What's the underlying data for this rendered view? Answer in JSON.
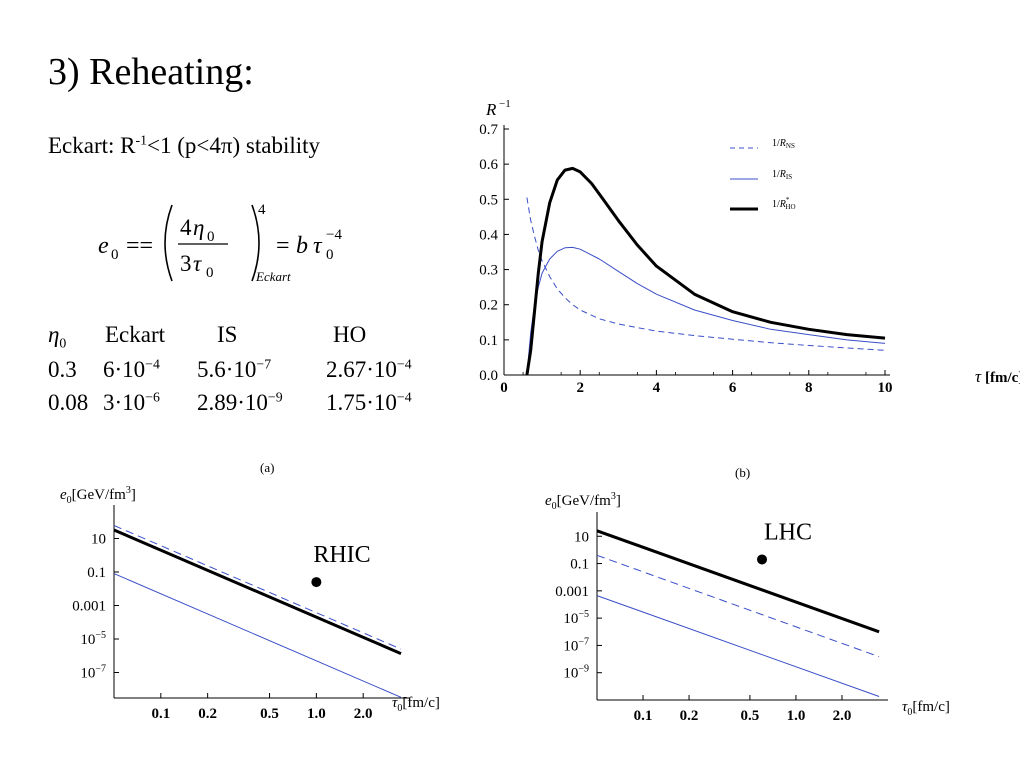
{
  "slide": {
    "title": "3) Reheating:",
    "eckart_line": {
      "prefix": "Eckart: R",
      "exp": "-1",
      "mid": "<1 (p<4",
      "pi": "π",
      "suffix": ") stability"
    },
    "formula": {
      "lhs_e": "e",
      "lhs_sub": "0",
      "equals": "==",
      "num_4": "4",
      "num_eta": "η",
      "num_sub": "0",
      "den_3": "3",
      "den_tau": "τ",
      "den_sub": "0",
      "power": "4",
      "subscript": "Eckart",
      "rhs_eq": "=",
      "rhs_b": "b",
      "rhs_tau": "τ",
      "rhs_sub": "0",
      "rhs_exp": "−4"
    },
    "table": {
      "header": {
        "eta": "η",
        "eta_sub": "0",
        "c1": "Eckart",
        "c2": "IS",
        "c3": "HO"
      },
      "rows": [
        {
          "eta": "0.3",
          "c1_m": "6·10",
          "c1_e": "−4",
          "c2_m": "5.6·10",
          "c2_e": "−7",
          "c3_m": "2.67·10",
          "c3_e": "−4"
        },
        {
          "eta": "0.08",
          "c1_m": "3·10",
          "c1_e": "−6",
          "c2_m": "2.89·10",
          "c2_e": "−9",
          "c3_m": "1.75·10",
          "c3_e": "−4"
        }
      ]
    }
  },
  "chart_data": [
    {
      "type": "line",
      "ylabel": "R",
      "ylabel_exp": "−1",
      "xlabel_sym": "τ",
      "xlabel_unit": " [fm/c]",
      "xlim": [
        0,
        10
      ],
      "ylim": [
        0,
        0.7
      ],
      "x_ticks": [
        "0",
        "2",
        "4",
        "6",
        "8",
        "10"
      ],
      "y_ticks": [
        "0.0",
        "0.1",
        "0.2",
        "0.3",
        "0.4",
        "0.5",
        "0.6",
        "0.7"
      ],
      "legend": [
        {
          "label_prefix": "1/",
          "label_r": "R",
          "label_sub": "NS",
          "label_sup": "",
          "style": "dashed",
          "color": "#3a4fc8"
        },
        {
          "label_prefix": "1/",
          "label_r": "R",
          "label_sub": "IS",
          "label_sup": "",
          "style": "thin",
          "color": "#3a4fc8"
        },
        {
          "label_prefix": "1/",
          "label_r": "R",
          "label_sub": "HO",
          "label_sup": "*",
          "style": "thick",
          "color": "#000000"
        }
      ],
      "series": [
        {
          "key": "ns",
          "x": [
            0.6,
            0.7,
            0.8,
            0.9,
            1.0,
            1.2,
            1.4,
            1.6,
            1.8,
            2.0,
            2.5,
            3.0,
            3.5,
            4.0,
            5.0,
            6.0,
            7.0,
            8.0,
            9.0,
            10.0
          ],
          "y": [
            0.505,
            0.44,
            0.395,
            0.355,
            0.325,
            0.28,
            0.245,
            0.22,
            0.2,
            0.185,
            0.16,
            0.145,
            0.135,
            0.125,
            0.112,
            0.102,
            0.092,
            0.084,
            0.077,
            0.07
          ]
        },
        {
          "key": "is",
          "x": [
            0.6,
            0.7,
            0.8,
            0.9,
            1.0,
            1.2,
            1.4,
            1.6,
            1.8,
            2.0,
            2.5,
            3.0,
            3.5,
            4.0,
            5.0,
            6.0,
            7.0,
            8.0,
            9.0,
            10.0
          ],
          "y": [
            0.0,
            0.12,
            0.2,
            0.25,
            0.29,
            0.33,
            0.352,
            0.362,
            0.363,
            0.358,
            0.33,
            0.295,
            0.26,
            0.23,
            0.185,
            0.155,
            0.13,
            0.115,
            0.1,
            0.09
          ]
        },
        {
          "key": "ho",
          "x": [
            0.6,
            0.7,
            0.8,
            0.9,
            1.0,
            1.2,
            1.4,
            1.6,
            1.8,
            2.0,
            2.3,
            2.6,
            3.0,
            3.5,
            4.0,
            5.0,
            6.0,
            7.0,
            8.0,
            9.0,
            10.0
          ],
          "y": [
            0.0,
            0.07,
            0.18,
            0.29,
            0.38,
            0.49,
            0.555,
            0.583,
            0.588,
            0.578,
            0.545,
            0.5,
            0.44,
            0.37,
            0.31,
            0.23,
            0.18,
            0.15,
            0.13,
            0.115,
            0.105
          ]
        }
      ]
    },
    {
      "type": "line",
      "caption": "(a)",
      "ylabel_e": "e",
      "ylabel_sub": "0",
      "ylabel_unit": "[GeV/fm",
      "ylabel_exp": "3",
      "ylabel_close": "]",
      "xlabel_tau": "τ",
      "xlabel_sub": "0",
      "xlabel_unit": "[fm/c]",
      "annotation": {
        "text": "RHIC",
        "x": 1.0,
        "y": 0.025
      },
      "xlim": [
        0.05,
        4.0
      ],
      "ylim": [
        3e-09,
        1000
      ],
      "x_ticks": [
        {
          "v": 0.1,
          "label": "0.1"
        },
        {
          "v": 0.2,
          "label": "0.2"
        },
        {
          "v": 0.5,
          "label": "0.5"
        },
        {
          "v": 1.0,
          "label": "1.0"
        },
        {
          "v": 2.0,
          "label": "2.0"
        }
      ],
      "y_ticks": [
        {
          "v": 10,
          "m": "10",
          "e": ""
        },
        {
          "v": 0.1,
          "m": "0.1",
          "e": ""
        },
        {
          "v": 0.001,
          "m": "0.001",
          "e": ""
        },
        {
          "v": 1e-05,
          "m": "10",
          "e": "−5"
        },
        {
          "v": 1e-07,
          "m": "10",
          "e": "−7"
        }
      ],
      "series": [
        {
          "key": "ns",
          "style": "dashed",
          "x": [
            0.05,
            3.5
          ],
          "y": [
            60,
            2.5e-06
          ]
        },
        {
          "key": "ho",
          "style": "thick",
          "x": [
            0.05,
            3.5
          ],
          "y": [
            32,
            1.35e-06
          ]
        },
        {
          "key": "is",
          "style": "thin",
          "x": [
            0.05,
            3.5
          ],
          "y": [
            0.08,
            3.3e-09
          ]
        }
      ]
    },
    {
      "type": "line",
      "caption": "(b)",
      "ylabel_e": "e",
      "ylabel_sub": "0",
      "ylabel_unit": "[GeV/fm",
      "ylabel_exp": "3",
      "ylabel_close": "]",
      "xlabel_tau": "τ",
      "xlabel_sub": "0",
      "xlabel_unit": "[fm/c]",
      "annotation": {
        "text": "LHC",
        "x": 0.6,
        "y": 0.2
      },
      "xlim": [
        0.05,
        4.0
      ],
      "ylim": [
        1e-11,
        600
      ],
      "x_ticks": [
        {
          "v": 0.1,
          "label": "0.1"
        },
        {
          "v": 0.2,
          "label": "0.2"
        },
        {
          "v": 0.5,
          "label": "0.5"
        },
        {
          "v": 1.0,
          "label": "1.0"
        },
        {
          "v": 2.0,
          "label": "2.0"
        }
      ],
      "y_ticks": [
        {
          "v": 10,
          "m": "10",
          "e": ""
        },
        {
          "v": 0.1,
          "m": "0.1",
          "e": ""
        },
        {
          "v": 0.001,
          "m": "0.001",
          "e": ""
        },
        {
          "v": 1e-05,
          "m": "10",
          "e": "−5"
        },
        {
          "v": 1e-07,
          "m": "10",
          "e": "−7"
        },
        {
          "v": 1e-09,
          "m": "10",
          "e": "−9"
        }
      ],
      "series": [
        {
          "key": "ho",
          "style": "thick",
          "x": [
            0.05,
            3.5
          ],
          "y": [
            25,
            1e-06
          ]
        },
        {
          "key": "ns",
          "style": "dashed",
          "x": [
            0.05,
            3.5
          ],
          "y": [
            0.4,
            1.5e-08
          ]
        },
        {
          "key": "is",
          "style": "thin",
          "x": [
            0.05,
            3.5
          ],
          "y": [
            0.00045,
            1.8e-11
          ]
        }
      ]
    }
  ]
}
